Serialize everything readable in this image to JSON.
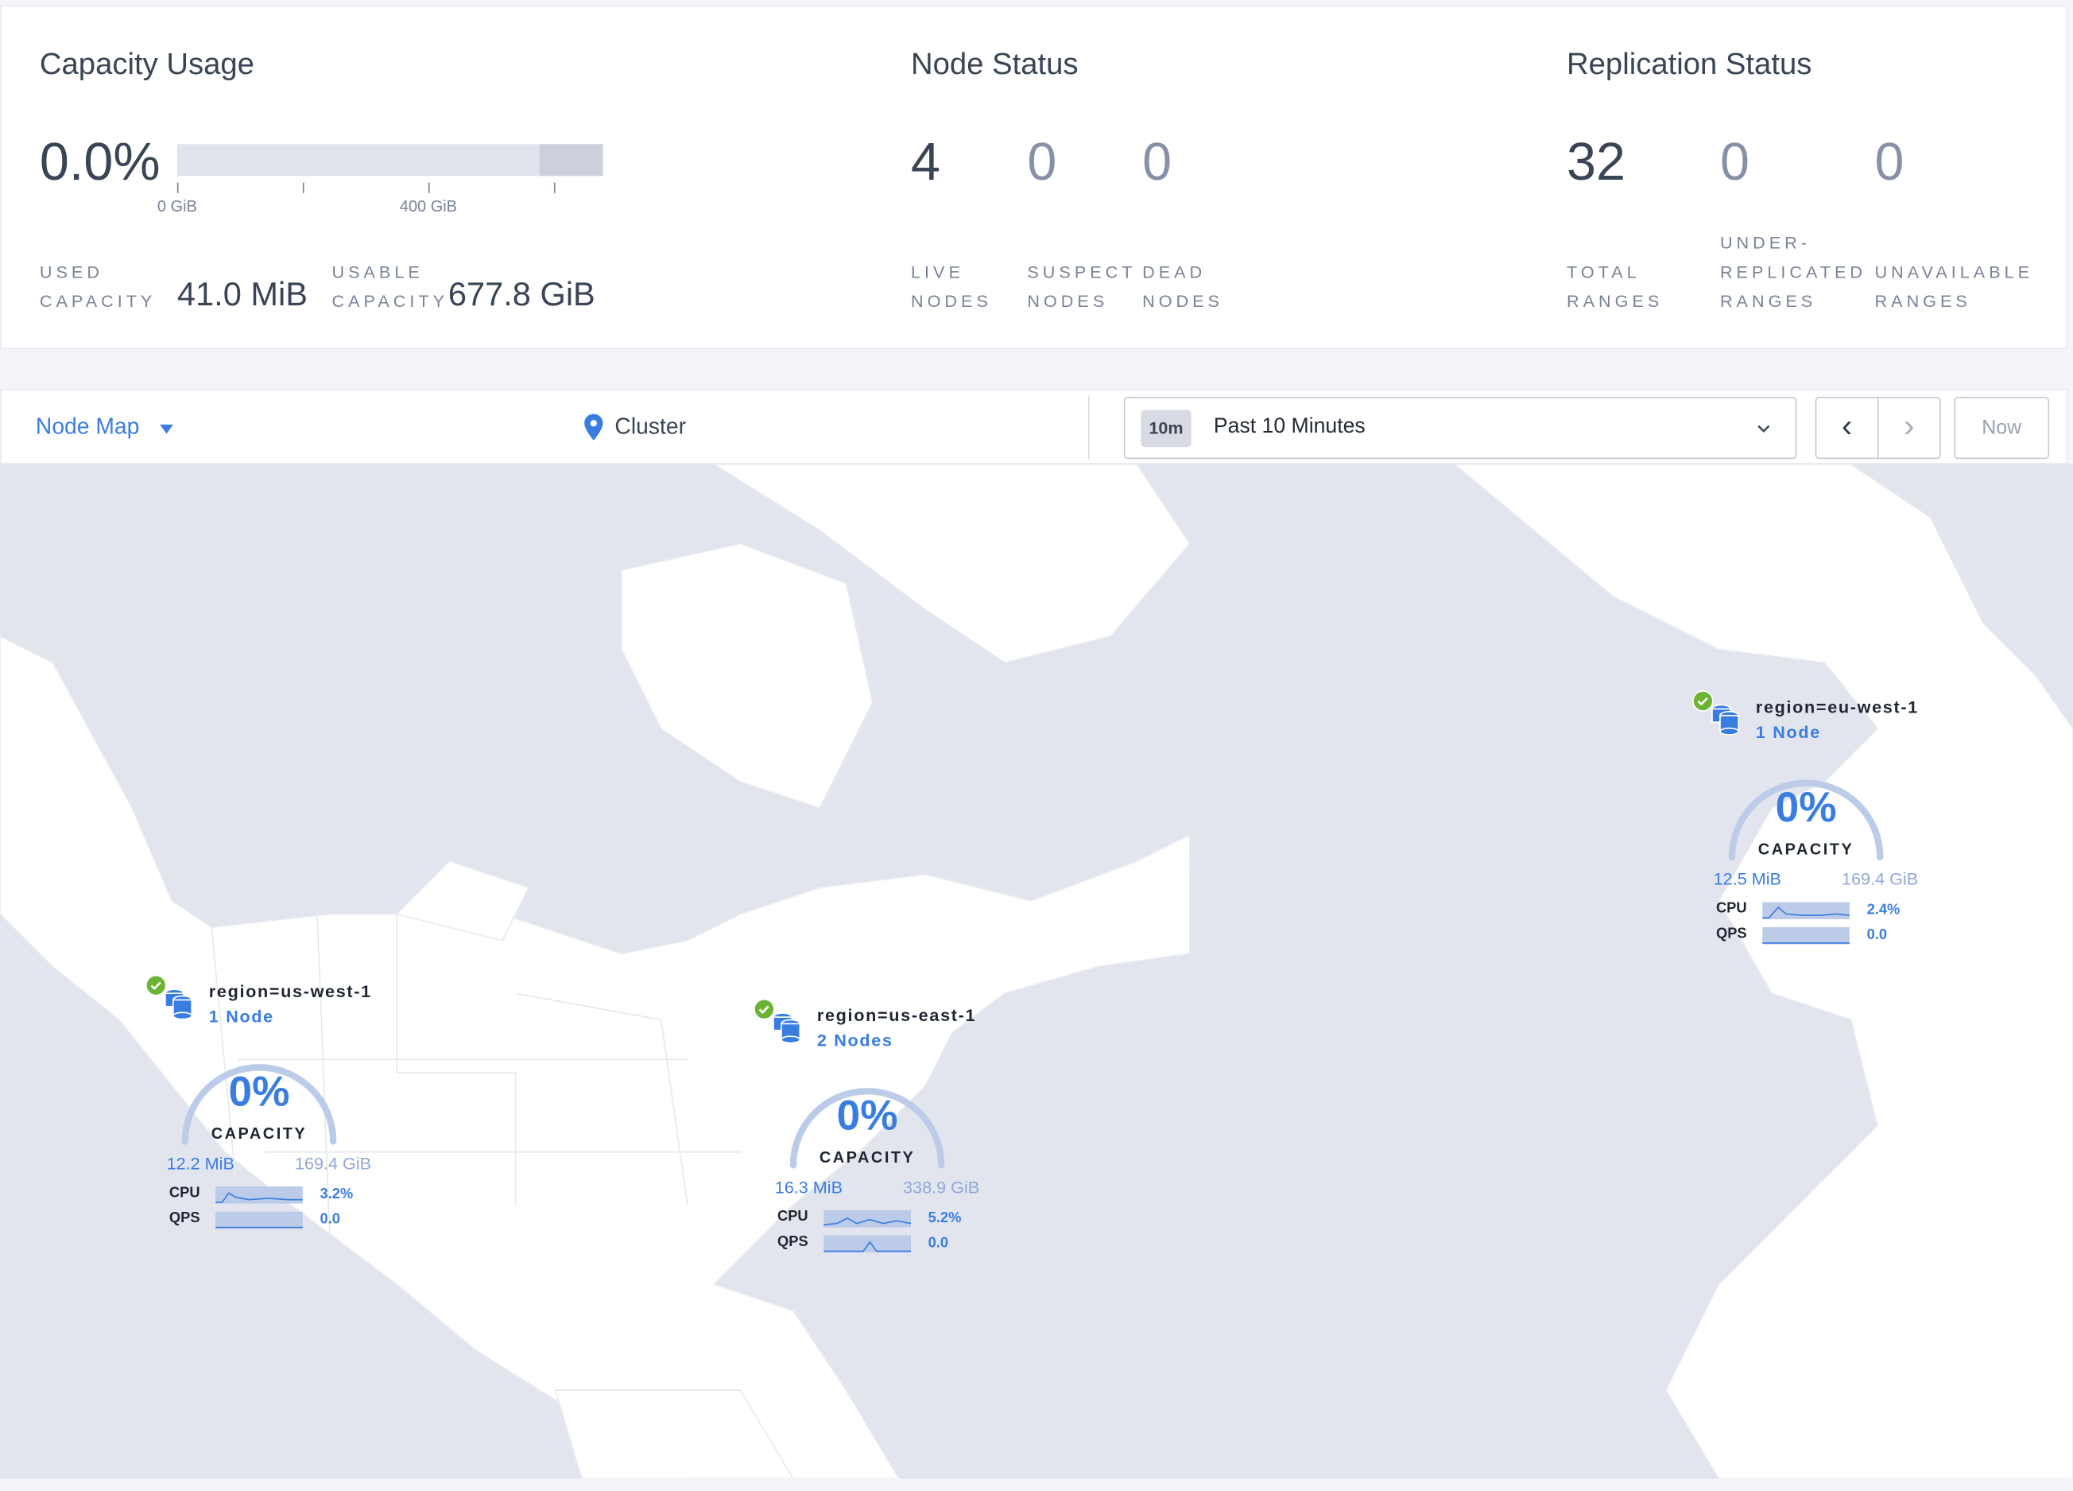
{
  "capacity": {
    "title": "Capacity Usage",
    "percent": "0.0%",
    "used_fraction": 0.0,
    "axis_ticks": [
      "0 GiB",
      "400 GiB"
    ],
    "used_label": "Used Capacity",
    "used_value": "41.0 MiB",
    "usable_label": "Usable Capacity",
    "usable_value": "677.8 GiB"
  },
  "node_status": {
    "title": "Node Status",
    "stats": [
      {
        "value": "4",
        "label": "Live Nodes"
      },
      {
        "value": "0",
        "label": "Suspect Nodes"
      },
      {
        "value": "0",
        "label": "Dead Nodes"
      }
    ]
  },
  "replication": {
    "title": "Replication Status",
    "stats": [
      {
        "value": "32",
        "label": "Total Ranges"
      },
      {
        "value": "0",
        "label": "Under-replicated Ranges"
      },
      {
        "value": "0",
        "label": "Unavailable Ranges"
      }
    ]
  },
  "toolbar": {
    "view": "Node Map",
    "breadcrumb": "Cluster",
    "time_badge": "10m",
    "time_range": "Past 10 Minutes",
    "prev": "‹",
    "next": "›",
    "now": "Now"
  },
  "colors": {
    "accent": "#3a7de1",
    "healthy": "#6bb333",
    "land": "#ffffff",
    "water": "#e2e5ed"
  },
  "localities": [
    {
      "name": "region=us-west-1",
      "nodes": "1 Node",
      "capacity_percent": "0%",
      "capacity_label": "CAPACITY",
      "used": "12.2 MiB",
      "total": "169.4 GiB",
      "cpu_label": "CPU",
      "cpu": "3.2%",
      "qps_label": "QPS",
      "qps": "0.0",
      "status": "healthy"
    },
    {
      "name": "region=us-east-1",
      "nodes": "2 Nodes",
      "capacity_percent": "0%",
      "capacity_label": "CAPACITY",
      "used": "16.3 MiB",
      "total": "338.9 GiB",
      "cpu_label": "CPU",
      "cpu": "5.2%",
      "qps_label": "QPS",
      "qps": "0.0",
      "status": "healthy"
    },
    {
      "name": "region=eu-west-1",
      "nodes": "1 Node",
      "capacity_percent": "0%",
      "capacity_label": "CAPACITY",
      "used": "12.5 MiB",
      "total": "169.4 GiB",
      "cpu_label": "CPU",
      "cpu": "2.4%",
      "qps_label": "QPS",
      "qps": "0.0",
      "status": "healthy"
    }
  ]
}
